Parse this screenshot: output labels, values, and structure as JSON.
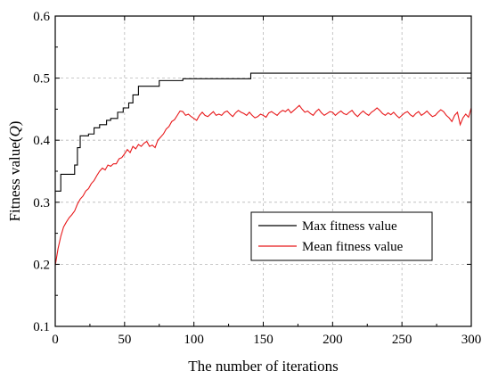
{
  "chart_data": {
    "type": "line",
    "title": "",
    "xlabel": "The number of iterations",
    "ylabel": "Fitness value(Q)",
    "ylabel_parts": {
      "main": "Fitness value(",
      "var": "Q",
      "close": ")"
    },
    "xlim": [
      0,
      300
    ],
    "ylim": [
      0.1,
      0.6
    ],
    "xticks": [
      0,
      50,
      100,
      150,
      200,
      250,
      300
    ],
    "yticks": [
      0.1,
      0.2,
      0.3,
      0.4,
      0.5,
      0.6
    ],
    "xtick_labels": [
      "0",
      "50",
      "100",
      "150",
      "200",
      "250",
      "300"
    ],
    "ytick_labels": [
      "0.1",
      "0.2",
      "0.3",
      "0.4",
      "0.5",
      "0.6"
    ],
    "grid": true,
    "legend_position": "center-right",
    "series": [
      {
        "name": "Max fitness value",
        "color": "#000000",
        "step": true,
        "points": [
          [
            0,
            0.318
          ],
          [
            3,
            0.318
          ],
          [
            4,
            0.345
          ],
          [
            8,
            0.345
          ],
          [
            9,
            0.345
          ],
          [
            14,
            0.36
          ],
          [
            16,
            0.388
          ],
          [
            18,
            0.407
          ],
          [
            22,
            0.407
          ],
          [
            24,
            0.41
          ],
          [
            28,
            0.42
          ],
          [
            32,
            0.425
          ],
          [
            37,
            0.432
          ],
          [
            40,
            0.435
          ],
          [
            45,
            0.445
          ],
          [
            49,
            0.452
          ],
          [
            53,
            0.46
          ],
          [
            56,
            0.473
          ],
          [
            60,
            0.487
          ],
          [
            72,
            0.487
          ],
          [
            75,
            0.496
          ],
          [
            90,
            0.496
          ],
          [
            92,
            0.499
          ],
          [
            140,
            0.499
          ],
          [
            141,
            0.508
          ],
          [
            300,
            0.508
          ]
        ]
      },
      {
        "name": "Mean fitness value",
        "color": "#e8191b",
        "step": false,
        "points": [
          [
            0,
            0.198
          ],
          [
            2,
            0.225
          ],
          [
            4,
            0.245
          ],
          [
            6,
            0.26
          ],
          [
            8,
            0.268
          ],
          [
            10,
            0.275
          ],
          [
            12,
            0.28
          ],
          [
            14,
            0.286
          ],
          [
            16,
            0.297
          ],
          [
            18,
            0.305
          ],
          [
            20,
            0.31
          ],
          [
            22,
            0.318
          ],
          [
            24,
            0.322
          ],
          [
            26,
            0.33
          ],
          [
            28,
            0.335
          ],
          [
            30,
            0.343
          ],
          [
            32,
            0.35
          ],
          [
            34,
            0.355
          ],
          [
            36,
            0.352
          ],
          [
            38,
            0.36
          ],
          [
            40,
            0.358
          ],
          [
            42,
            0.362
          ],
          [
            44,
            0.362
          ],
          [
            46,
            0.37
          ],
          [
            48,
            0.372
          ],
          [
            50,
            0.378
          ],
          [
            52,
            0.385
          ],
          [
            54,
            0.38
          ],
          [
            56,
            0.39
          ],
          [
            58,
            0.386
          ],
          [
            60,
            0.393
          ],
          [
            62,
            0.39
          ],
          [
            64,
            0.395
          ],
          [
            66,
            0.398
          ],
          [
            68,
            0.39
          ],
          [
            70,
            0.392
          ],
          [
            72,
            0.388
          ],
          [
            74,
            0.4
          ],
          [
            76,
            0.405
          ],
          [
            78,
            0.41
          ],
          [
            80,
            0.418
          ],
          [
            82,
            0.422
          ],
          [
            84,
            0.43
          ],
          [
            86,
            0.433
          ],
          [
            88,
            0.44
          ],
          [
            90,
            0.447
          ],
          [
            92,
            0.446
          ],
          [
            94,
            0.44
          ],
          [
            96,
            0.442
          ],
          [
            98,
            0.438
          ],
          [
            100,
            0.435
          ],
          [
            102,
            0.432
          ],
          [
            104,
            0.44
          ],
          [
            106,
            0.445
          ],
          [
            108,
            0.44
          ],
          [
            110,
            0.438
          ],
          [
            112,
            0.442
          ],
          [
            114,
            0.446
          ],
          [
            116,
            0.44
          ],
          [
            118,
            0.442
          ],
          [
            120,
            0.44
          ],
          [
            122,
            0.445
          ],
          [
            124,
            0.447
          ],
          [
            126,
            0.442
          ],
          [
            128,
            0.438
          ],
          [
            130,
            0.444
          ],
          [
            132,
            0.448
          ],
          [
            134,
            0.445
          ],
          [
            136,
            0.443
          ],
          [
            138,
            0.44
          ],
          [
            140,
            0.445
          ],
          [
            142,
            0.44
          ],
          [
            144,
            0.436
          ],
          [
            146,
            0.438
          ],
          [
            148,
            0.442
          ],
          [
            150,
            0.44
          ],
          [
            152,
            0.437
          ],
          [
            154,
            0.444
          ],
          [
            156,
            0.446
          ],
          [
            158,
            0.443
          ],
          [
            160,
            0.44
          ],
          [
            162,
            0.445
          ],
          [
            164,
            0.448
          ],
          [
            166,
            0.446
          ],
          [
            168,
            0.45
          ],
          [
            170,
            0.444
          ],
          [
            172,
            0.448
          ],
          [
            174,
            0.452
          ],
          [
            176,
            0.456
          ],
          [
            178,
            0.45
          ],
          [
            180,
            0.445
          ],
          [
            182,
            0.447
          ],
          [
            184,
            0.443
          ],
          [
            186,
            0.44
          ],
          [
            188,
            0.446
          ],
          [
            190,
            0.45
          ],
          [
            192,
            0.444
          ],
          [
            194,
            0.44
          ],
          [
            196,
            0.443
          ],
          [
            198,
            0.446
          ],
          [
            200,
            0.445
          ],
          [
            202,
            0.44
          ],
          [
            204,
            0.444
          ],
          [
            206,
            0.447
          ],
          [
            208,
            0.443
          ],
          [
            210,
            0.441
          ],
          [
            212,
            0.445
          ],
          [
            214,
            0.448
          ],
          [
            216,
            0.442
          ],
          [
            218,
            0.438
          ],
          [
            220,
            0.443
          ],
          [
            222,
            0.447
          ],
          [
            224,
            0.443
          ],
          [
            226,
            0.44
          ],
          [
            228,
            0.445
          ],
          [
            230,
            0.448
          ],
          [
            232,
            0.452
          ],
          [
            234,
            0.448
          ],
          [
            236,
            0.443
          ],
          [
            238,
            0.44
          ],
          [
            240,
            0.444
          ],
          [
            242,
            0.441
          ],
          [
            244,
            0.445
          ],
          [
            246,
            0.44
          ],
          [
            248,
            0.436
          ],
          [
            250,
            0.44
          ],
          [
            252,
            0.444
          ],
          [
            254,
            0.446
          ],
          [
            256,
            0.441
          ],
          [
            258,
            0.438
          ],
          [
            260,
            0.443
          ],
          [
            262,
            0.446
          ],
          [
            264,
            0.44
          ],
          [
            266,
            0.443
          ],
          [
            268,
            0.447
          ],
          [
            270,
            0.442
          ],
          [
            272,
            0.438
          ],
          [
            274,
            0.44
          ],
          [
            276,
            0.445
          ],
          [
            278,
            0.449
          ],
          [
            280,
            0.446
          ],
          [
            282,
            0.44
          ],
          [
            284,
            0.436
          ],
          [
            286,
            0.43
          ],
          [
            288,
            0.44
          ],
          [
            290,
            0.445
          ],
          [
            292,
            0.425
          ],
          [
            294,
            0.436
          ],
          [
            296,
            0.442
          ],
          [
            298,
            0.437
          ],
          [
            300,
            0.452
          ]
        ]
      }
    ]
  }
}
